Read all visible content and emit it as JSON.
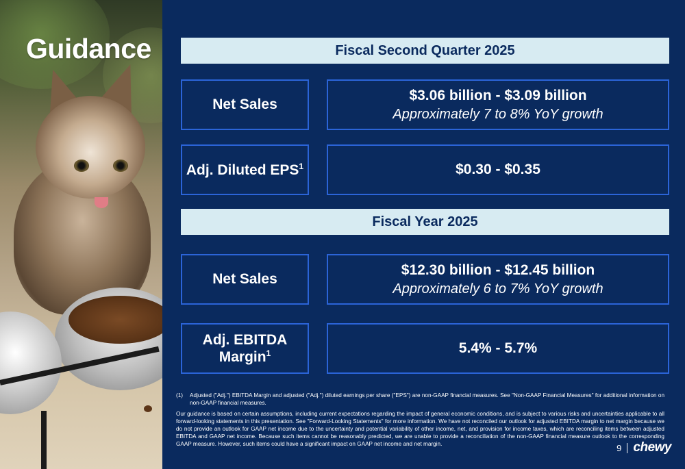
{
  "title": "Guidance",
  "q2": {
    "header": "Fiscal Second Quarter 2025",
    "net_sales_label": "Net Sales",
    "net_sales_value": "$3.06 billion - $3.09 billion",
    "net_sales_growth": "Approximately 7 to 8% YoY growth",
    "eps_label": "Adj. Diluted EPS",
    "eps_sup": "1",
    "eps_value": "$0.30 - $0.35"
  },
  "fy": {
    "header": "Fiscal Year 2025",
    "net_sales_label": "Net Sales",
    "net_sales_value": "$12.30 billion - $12.45 billion",
    "net_sales_growth": "Approximately 6 to 7% YoY growth",
    "ebitda_label": "Adj. EBITDA Margin",
    "ebitda_sup": "1",
    "ebitda_value": "5.4% - 5.7%"
  },
  "footnotes": {
    "note1_number": "(1)",
    "note1_text": "Adjusted (\"Adj.\") EBITDA Margin and adjusted (\"Adj.\") diluted earnings per share (\"EPS\") are non-GAAP financial measures. See \"Non-GAAP Financial Measures\" for additional information on non-GAAP financial measures.",
    "disclaimer": "Our guidance is based on certain assumptions, including current expectations regarding the impact of general economic conditions, and is subject to various risks and uncertainties applicable to all forward-looking statements in this presentation. See \"Forward-Looking Statements\" for more information. We have not reconciled our outlook for adjusted EBITDA margin to net margin because we do not provide an outlook for GAAP net income due to the uncertainty and potential variability of other income, net, and provision for income taxes, which are reconciling items between adjusted EBITDA and GAAP net income. Because such items cannot be reasonably predicted, we are unable to provide a reconciliation of the non-GAAP financial measure outlook to the corresponding GAAP measure. However, such items could have a significant impact on GAAP net income and net margin."
  },
  "footer": {
    "page_number": "9",
    "logo_text": "chewy"
  },
  "colors": {
    "background": "#0a2a5e",
    "header_band": "#d7ebf2",
    "box_border": "#2b64d8"
  }
}
